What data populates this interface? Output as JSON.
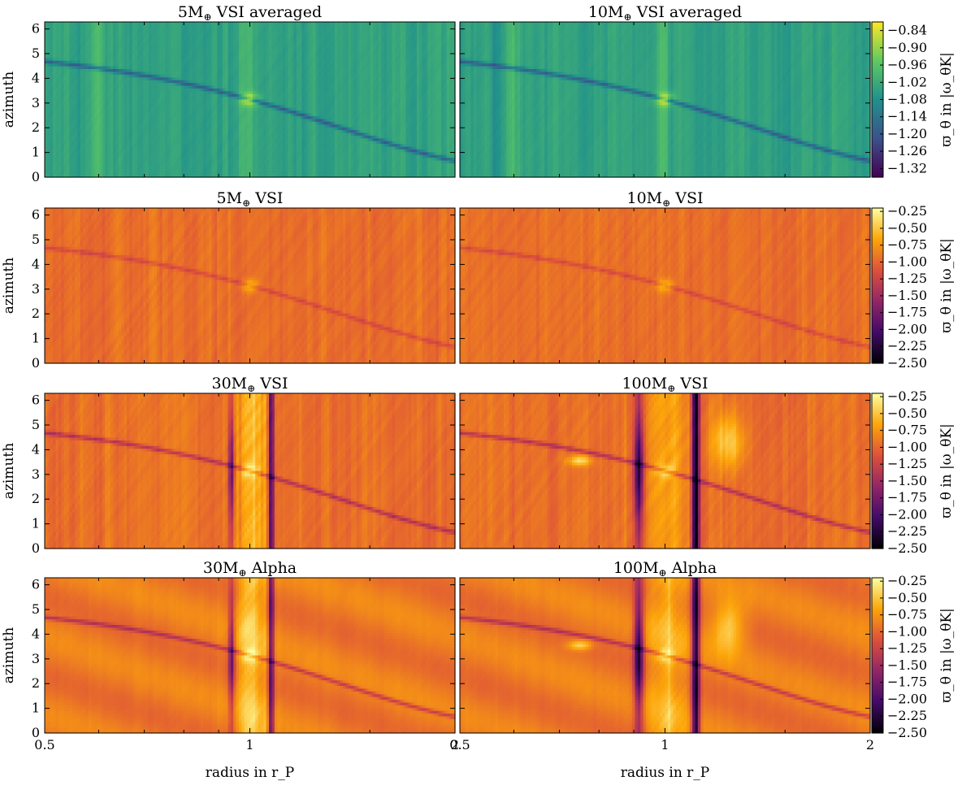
{
  "chart_data": {
    "type": "heatmap",
    "xlabel": "radius in r_P",
    "ylabel": "azimuth",
    "xlim": [
      0.5,
      2
    ],
    "ylim": [
      0,
      6.283
    ],
    "xscale": "log",
    "x_ticks": [
      "0.5",
      "1",
      "2"
    ],
    "y_ticks": [
      "0",
      "1",
      "2",
      "3",
      "4",
      "5",
      "6"
    ],
    "colorbar_label": "ϖ_θ in |ω_θK|",
    "rows": [
      {
        "colormap": "viridis",
        "clim": [
          -1.35,
          -0.81
        ],
        "colorbar_ticks": [
          "−0.84",
          "−0.90",
          "−0.96",
          "−1.02",
          "−1.08",
          "−1.14",
          "−1.20",
          "−1.26",
          "−1.32"
        ],
        "panels": [
          {
            "title_mass": "5M",
            "title_rest": " VSI averaged",
            "mass": 5,
            "model": "VSI averaged"
          },
          {
            "title_mass": "10M",
            "title_rest": " VSI averaged",
            "mass": 10,
            "model": "VSI averaged"
          }
        ]
      },
      {
        "colormap": "inferno",
        "clim": [
          -2.5,
          -0.2
        ],
        "colorbar_ticks": [
          "−0.25",
          "−0.50",
          "−0.75",
          "−1.00",
          "−1.25",
          "−1.50",
          "−1.75",
          "−2.00",
          "−2.25",
          "−2.50"
        ],
        "panels": [
          {
            "title_mass": "5M",
            "title_rest": " VSI",
            "mass": 5,
            "model": "VSI"
          },
          {
            "title_mass": "10M",
            "title_rest": " VSI",
            "mass": 10,
            "model": "VSI"
          }
        ]
      },
      {
        "colormap": "inferno",
        "clim": [
          -2.5,
          -0.2
        ],
        "colorbar_ticks": [
          "−0.25",
          "−0.50",
          "−0.75",
          "−1.00",
          "−1.25",
          "−1.50",
          "−1.75",
          "−2.00",
          "−2.25",
          "−2.50"
        ],
        "panels": [
          {
            "title_mass": "30M",
            "title_rest": " VSI",
            "mass": 30,
            "model": "VSI"
          },
          {
            "title_mass": "100M",
            "title_rest": " VSI",
            "mass": 100,
            "model": "VSI"
          }
        ]
      },
      {
        "colormap": "inferno",
        "clim": [
          -2.5,
          -0.2
        ],
        "colorbar_ticks": [
          "−0.25",
          "−0.50",
          "−0.75",
          "−1.00",
          "−1.25",
          "−1.50",
          "−1.75",
          "−2.00",
          "−2.25",
          "−2.50"
        ],
        "panels": [
          {
            "title_mass": "30M",
            "title_rest": " Alpha",
            "mass": 30,
            "model": "Alpha"
          },
          {
            "title_mass": "100M",
            "title_rest": " Alpha",
            "mass": 100,
            "model": "Alpha"
          }
        ]
      }
    ],
    "colors": {
      "viridis": [
        "#440154",
        "#3b528b",
        "#21918c",
        "#5ec962",
        "#fde725"
      ],
      "inferno": [
        "#000004",
        "#420a68",
        "#932667",
        "#dd513a",
        "#fca50a",
        "#fcffa4"
      ]
    }
  }
}
